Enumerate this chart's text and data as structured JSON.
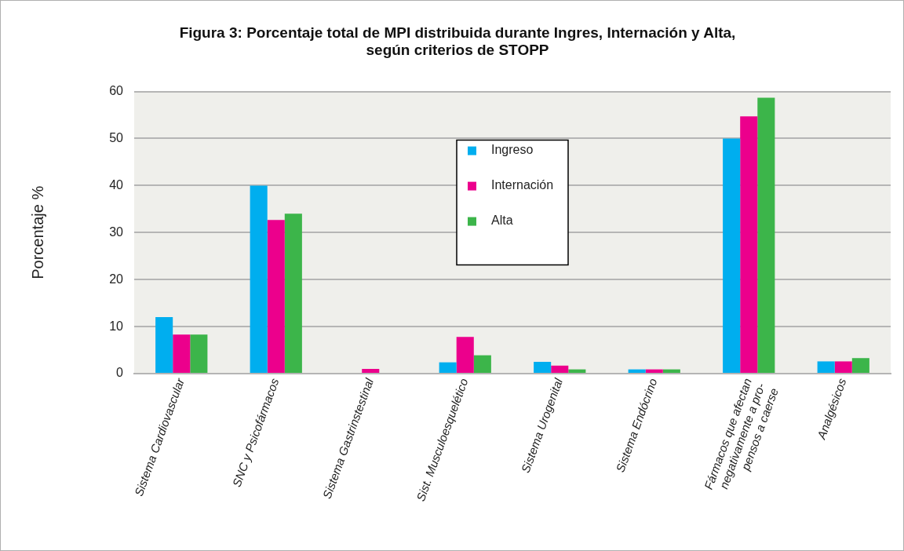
{
  "chart_data": {
    "type": "bar",
    "title": "Figura 3: Porcentaje total de MPI distribuida durante Ingres, Internación y Alta,\nsegún criterios de STOPP",
    "ylabel": "Porcentaje %",
    "categories": [
      "Sistema Cardiovascular",
      "SNC y Psicofármacos",
      "Sistema Gastrinstestinal",
      "Sist. Musculoesquelético",
      "Sistema Urogenital",
      "Sistema Endócrino",
      "Fármacos que afectan\nnegativamente a pro-\npensos a caerse",
      "Analgésicos"
    ],
    "series": [
      {
        "name": "Ingreso",
        "color": "#00aeef",
        "values": [
          12,
          40,
          0,
          2.4,
          2.5,
          0.9,
          50,
          2.6
        ]
      },
      {
        "name": "Internación",
        "color": "#ec008c",
        "values": [
          8.3,
          32.7,
          1,
          7.8,
          1.7,
          0.9,
          54.7,
          2.6
        ]
      },
      {
        "name": "Alta",
        "color": "#3cb54a",
        "values": [
          8.3,
          34,
          0,
          3.9,
          0.9,
          0.9,
          58.7,
          3.3
        ]
      }
    ],
    "ylim": [
      0,
      60
    ],
    "yticks": [
      0,
      10,
      20,
      30,
      40,
      50,
      60
    ],
    "grid": "y",
    "legend": "top"
  }
}
